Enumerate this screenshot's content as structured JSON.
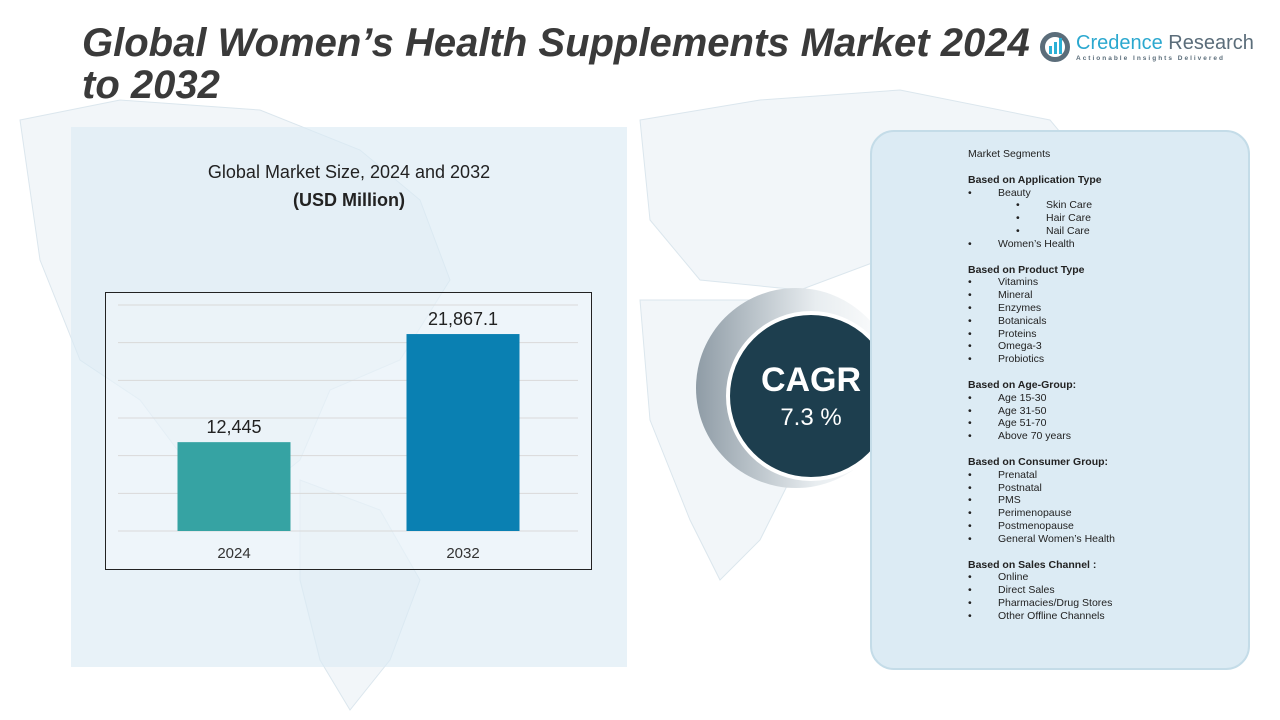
{
  "title": "Global Women’s Health Supplements Market 2024 to 2032",
  "logo": {
    "name_a": "Credence",
    "name_b": " Research",
    "tagline": "Actionable Insights Delivered"
  },
  "chart_data": {
    "type": "bar",
    "title": "Global Market Size, 2024 and 2032",
    "subtitle": "(USD Million)",
    "categories": [
      "2024",
      "2032"
    ],
    "values": [
      12445,
      21867.1
    ],
    "labels": [
      "12,445",
      "21,867.1"
    ],
    "colors": [
      "#36a3a3",
      "#0a80b2"
    ],
    "ylim": [
      4700,
      24400
    ],
    "grid": true,
    "xlabel": "",
    "ylabel": ""
  },
  "cagr": {
    "label": "CAGR",
    "value": "7.3 %"
  },
  "segments": {
    "heading": "Market Segments",
    "groups": [
      {
        "title": "Based on Application Type",
        "items": [
          {
            "t": "Beauty"
          },
          {
            "t": "Skin Care",
            "sub": true
          },
          {
            "t": "Hair Care",
            "sub": true
          },
          {
            "t": "Nail Care",
            "sub": true
          },
          {
            "t": "Women’s Health"
          }
        ]
      },
      {
        "title": "Based on Product Type",
        "items": [
          {
            "t": "Vitamins"
          },
          {
            "t": "Mineral"
          },
          {
            "t": "Enzymes"
          },
          {
            "t": "Botanicals"
          },
          {
            "t": "Proteins"
          },
          {
            "t": "Omega-3"
          },
          {
            "t": "Probiotics"
          }
        ]
      },
      {
        "title": "Based on Age-Group:",
        "items": [
          {
            "t": "Age 15-30"
          },
          {
            "t": "Age 31-50"
          },
          {
            "t": "Age 51-70"
          },
          {
            "t": "Above 70 years"
          }
        ]
      },
      {
        "title": "Based on Consumer Group:",
        "items": [
          {
            "t": "Prenatal"
          },
          {
            "t": "Postnatal"
          },
          {
            "t": "PMS"
          },
          {
            "t": "Perimenopause"
          },
          {
            "t": "Postmenopause"
          },
          {
            "t": "General Women’s Health"
          }
        ]
      },
      {
        "title": "Based on Sales Channel :",
        "items": [
          {
            "t": "Online"
          },
          {
            "t": "Direct Sales"
          },
          {
            "t": "Pharmacies/Drug Stores"
          },
          {
            "t": "Other Offline Channels"
          }
        ]
      }
    ]
  }
}
